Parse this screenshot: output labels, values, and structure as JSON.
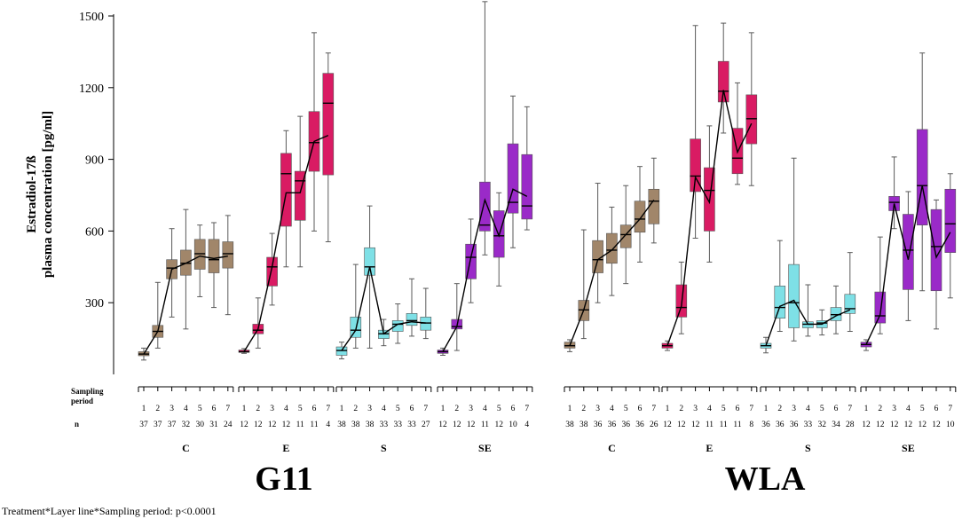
{
  "colors": {
    "C": "#a1866a",
    "E": "#d91b63",
    "S": "#7ee0e6",
    "SE": "#9a2ac8",
    "whisker": "#5a5a5a",
    "meanline": "#000000"
  },
  "labels": {
    "sampling_period": "Sampling period",
    "n": "n",
    "footnote": "Treatment*Layer line*Sampling period: p<0.0001"
  },
  "chart_data": {
    "type": "boxplot",
    "ylabel_line1": "Estradiol-17ß",
    "ylabel_line2": "plasma concentration [pg/ml]",
    "ylim": [
      0,
      1500
    ],
    "yticks": [
      300,
      600,
      900,
      1200,
      1500
    ],
    "panels": [
      {
        "line": "G11",
        "groups": [
          {
            "treatment": "C",
            "periods": [
              1,
              2,
              3,
              4,
              5,
              6,
              7
            ],
            "n": [
              37,
              37,
              37,
              32,
              30,
              31,
              24
            ],
            "boxes": [
              {
                "min": 60,
                "q1": 78,
                "median": 85,
                "q3": 95,
                "max": 110
              },
              {
                "min": 110,
                "q1": 155,
                "median": 180,
                "q3": 205,
                "max": 385
              },
              {
                "min": 240,
                "q1": 400,
                "median": 445,
                "q3": 480,
                "max": 610
              },
              {
                "min": 190,
                "q1": 415,
                "median": 465,
                "q3": 520,
                "max": 690
              },
              {
                "min": 325,
                "q1": 440,
                "median": 505,
                "q3": 565,
                "max": 625
              },
              {
                "min": 280,
                "q1": 425,
                "median": 480,
                "q3": 565,
                "max": 635
              },
              {
                "min": 250,
                "q1": 445,
                "median": 505,
                "q3": 555,
                "max": 665
              }
            ],
            "means": [
              85,
              180,
              440,
              465,
              495,
              485,
              495
            ]
          },
          {
            "treatment": "E",
            "periods": [
              1,
              2,
              3,
              4,
              5,
              6,
              7
            ],
            "n": [
              12,
              12,
              12,
              12,
              11,
              11,
              4
            ],
            "boxes": [
              {
                "min": 88,
                "q1": 92,
                "median": 95,
                "q3": 102,
                "max": 108
              },
              {
                "min": 110,
                "q1": 170,
                "median": 185,
                "q3": 210,
                "max": 320
              },
              {
                "min": 290,
                "q1": 370,
                "median": 450,
                "q3": 490,
                "max": 590
              },
              {
                "min": 450,
                "q1": 620,
                "median": 840,
                "q3": 925,
                "max": 1020
              },
              {
                "min": 450,
                "q1": 645,
                "median": 810,
                "q3": 850,
                "max": 1080
              },
              {
                "min": 600,
                "q1": 850,
                "median": 970,
                "q3": 1100,
                "max": 1430
              },
              {
                "min": 555,
                "q1": 835,
                "median": 1135,
                "q3": 1260,
                "max": 1345
              }
            ],
            "means": [
              95,
              190,
              450,
              760,
              760,
              975,
              1000
            ]
          },
          {
            "treatment": "S",
            "periods": [
              1,
              2,
              3,
              4,
              5,
              6,
              7
            ],
            "n": [
              38,
              38,
              38,
              33,
              33,
              33,
              27
            ],
            "boxes": [
              {
                "min": 65,
                "q1": 80,
                "median": 100,
                "q3": 115,
                "max": 135
              },
              {
                "min": 110,
                "q1": 155,
                "median": 185,
                "q3": 240,
                "max": 460
              },
              {
                "min": 110,
                "q1": 415,
                "median": 450,
                "q3": 530,
                "max": 705
              },
              {
                "min": 120,
                "q1": 150,
                "median": 170,
                "q3": 185,
                "max": 230
              },
              {
                "min": 130,
                "q1": 180,
                "median": 210,
                "q3": 225,
                "max": 295
              },
              {
                "min": 160,
                "q1": 205,
                "median": 225,
                "q3": 255,
                "max": 400
              },
              {
                "min": 150,
                "q1": 185,
                "median": 215,
                "q3": 240,
                "max": 360
              }
            ],
            "means": [
              100,
              185,
              450,
              170,
              210,
              220,
              215
            ]
          },
          {
            "treatment": "SE",
            "periods": [
              1,
              2,
              3,
              4,
              5,
              6,
              7
            ],
            "n": [
              12,
              12,
              12,
              11,
              12,
              10,
              4
            ],
            "boxes": [
              {
                "min": 80,
                "q1": 88,
                "median": 95,
                "q3": 102,
                "max": 110
              },
              {
                "min": 100,
                "q1": 190,
                "median": 200,
                "q3": 230,
                "max": 380
              },
              {
                "min": 300,
                "q1": 400,
                "median": 490,
                "q3": 545,
                "max": 650
              },
              {
                "min": 500,
                "q1": 600,
                "median": 625,
                "q3": 805,
                "max": 1560
              },
              {
                "min": 370,
                "q1": 490,
                "median": 580,
                "q3": 685,
                "max": 760
              },
              {
                "min": 530,
                "q1": 675,
                "median": 720,
                "q3": 965,
                "max": 1165
              },
              {
                "min": 605,
                "q1": 650,
                "median": 705,
                "q3": 920,
                "max": 1120
              }
            ],
            "means": [
              95,
              200,
              490,
              730,
              580,
              775,
              745
            ]
          }
        ]
      },
      {
        "line": "WLA",
        "groups": [
          {
            "treatment": "C",
            "periods": [
              1,
              2,
              3,
              4,
              5,
              6,
              7
            ],
            "n": [
              38,
              38,
              36,
              36,
              36,
              36,
              26
            ],
            "boxes": [
              {
                "min": 95,
                "q1": 110,
                "median": 120,
                "q3": 135,
                "max": 145
              },
              {
                "min": 150,
                "q1": 225,
                "median": 270,
                "q3": 310,
                "max": 605
              },
              {
                "min": 300,
                "q1": 425,
                "median": 480,
                "q3": 560,
                "max": 800
              },
              {
                "min": 330,
                "q1": 465,
                "median": 520,
                "q3": 590,
                "max": 700
              },
              {
                "min": 380,
                "q1": 530,
                "median": 585,
                "q3": 625,
                "max": 790
              },
              {
                "min": 470,
                "q1": 595,
                "median": 650,
                "q3": 725,
                "max": 870
              },
              {
                "min": 550,
                "q1": 630,
                "median": 725,
                "q3": 775,
                "max": 905
              }
            ],
            "means": [
              120,
              270,
              480,
              520,
              585,
              650,
              730
            ]
          },
          {
            "treatment": "E",
            "periods": [
              1,
              2,
              3,
              4,
              5,
              6,
              7
            ],
            "n": [
              12,
              12,
              12,
              11,
              11,
              11,
              8
            ],
            "boxes": [
              {
                "min": 100,
                "q1": 110,
                "median": 120,
                "q3": 130,
                "max": 140
              },
              {
                "min": 170,
                "q1": 240,
                "median": 280,
                "q3": 375,
                "max": 470
              },
              {
                "min": 570,
                "q1": 765,
                "median": 830,
                "q3": 985,
                "max": 1460
              },
              {
                "min": 470,
                "q1": 600,
                "median": 770,
                "q3": 865,
                "max": 1040
              },
              {
                "min": 1010,
                "q1": 1140,
                "median": 1185,
                "q3": 1310,
                "max": 1470
              },
              {
                "min": 795,
                "q1": 840,
                "median": 905,
                "q3": 1030,
                "max": 1220
              },
              {
                "min": 790,
                "q1": 965,
                "median": 1070,
                "q3": 1170,
                "max": 1430
              }
            ],
            "means": [
              120,
              285,
              825,
              720,
              1190,
              930,
              1050
            ]
          },
          {
            "treatment": "S",
            "periods": [
              1,
              2,
              3,
              4,
              5,
              6,
              7
            ],
            "n": [
              36,
              36,
              36,
              33,
              32,
              34,
              28
            ],
            "boxes": [
              {
                "min": 90,
                "q1": 110,
                "median": 120,
                "q3": 130,
                "max": 155
              },
              {
                "min": 180,
                "q1": 235,
                "median": 280,
                "q3": 370,
                "max": 560
              },
              {
                "min": 140,
                "q1": 195,
                "median": 300,
                "q3": 460,
                "max": 905
              },
              {
                "min": 160,
                "q1": 195,
                "median": 210,
                "q3": 220,
                "max": 375
              },
              {
                "min": 165,
                "q1": 195,
                "median": 215,
                "q3": 225,
                "max": 270
              },
              {
                "min": 170,
                "q1": 225,
                "median": 250,
                "q3": 280,
                "max": 370
              },
              {
                "min": 180,
                "q1": 255,
                "median": 275,
                "q3": 335,
                "max": 510
              }
            ],
            "means": [
              120,
              285,
              310,
              210,
              210,
              245,
              270
            ]
          },
          {
            "treatment": "SE",
            "periods": [
              1,
              2,
              3,
              4,
              5,
              6,
              7
            ],
            "n": [
              12,
              12,
              12,
              12,
              12,
              12,
              10
            ],
            "boxes": [
              {
                "min": 100,
                "q1": 115,
                "median": 125,
                "q3": 135,
                "max": 145
              },
              {
                "min": 170,
                "q1": 215,
                "median": 245,
                "q3": 345,
                "max": 575
              },
              {
                "min": 610,
                "q1": 685,
                "median": 720,
                "q3": 745,
                "max": 910
              },
              {
                "min": 225,
                "q1": 355,
                "median": 520,
                "q3": 670,
                "max": 765
              },
              {
                "min": 350,
                "q1": 625,
                "median": 790,
                "q3": 1025,
                "max": 1345
              },
              {
                "min": 190,
                "q1": 350,
                "median": 535,
                "q3": 690,
                "max": 730
              },
              {
                "min": 320,
                "q1": 510,
                "median": 630,
                "q3": 775,
                "max": 840
              }
            ],
            "means": [
              125,
              250,
              715,
              480,
              790,
              490,
              595
            ]
          }
        ]
      }
    ]
  }
}
